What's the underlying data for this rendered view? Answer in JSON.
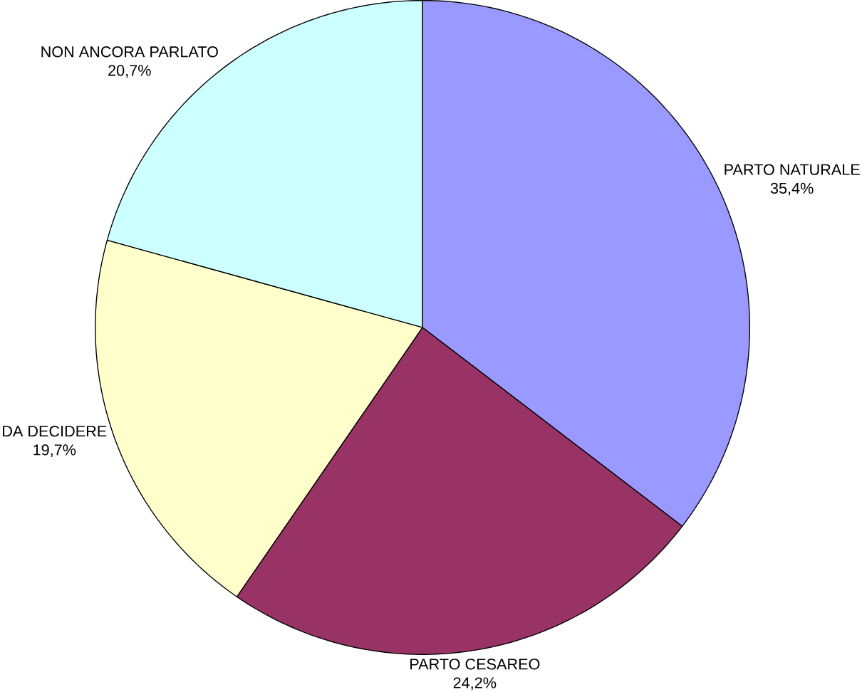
{
  "chart_data": {
    "type": "pie",
    "categories": [
      "PARTO NATURALE",
      "PARTO CESAREO",
      "DA DECIDERE",
      "NON ANCORA PARLATO"
    ],
    "values": [
      35.4,
      24.2,
      19.7,
      20.7
    ],
    "value_labels": [
      "35,4%",
      "24,2%",
      "19,7%",
      "20,7%"
    ],
    "colors": [
      "#9999ff",
      "#993366",
      "#ffffcc",
      "#ccffff"
    ]
  }
}
